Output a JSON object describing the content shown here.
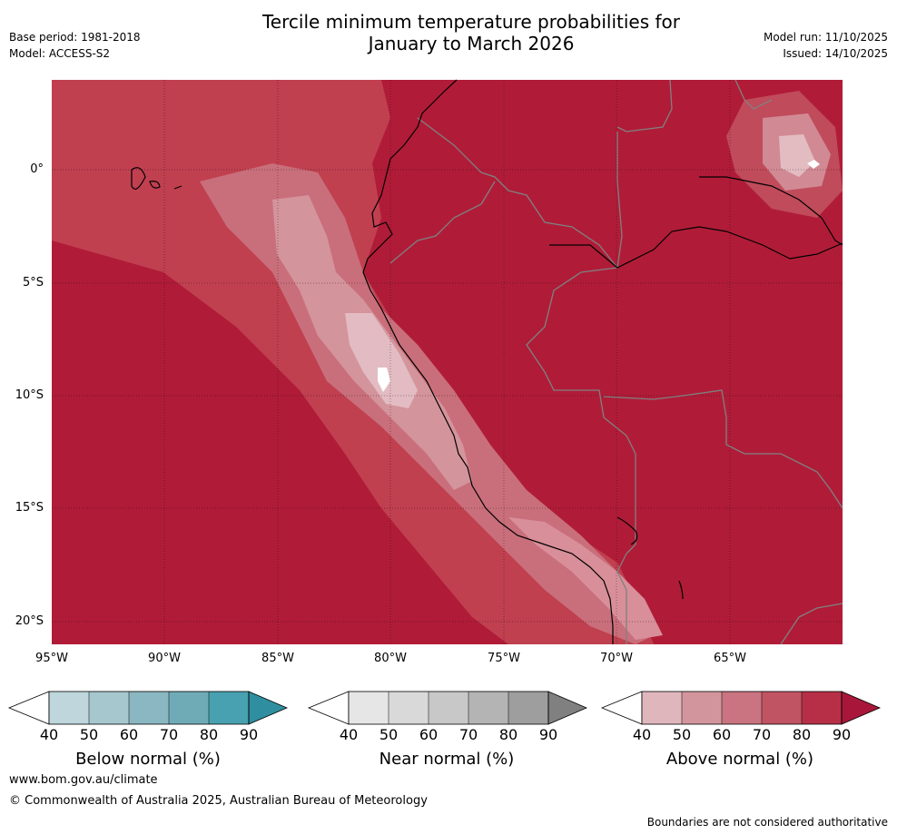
{
  "header": {
    "base_period": "Base period: 1981-2018",
    "model": "Model: ACCESS-S2",
    "title_line1": "Tercile minimum temperature probabilities for",
    "title_line2": "January to March 2026",
    "model_run": "Model run: 11/10/2025",
    "issued": "Issued: 14/10/2025"
  },
  "map": {
    "lat_labels": [
      "0°",
      "5°S",
      "10°S",
      "15°S",
      "20°S"
    ],
    "lon_labels": [
      "95°W",
      "90°W",
      "85°W",
      "80°W",
      "75°W",
      "70°W",
      "65°W"
    ],
    "dominant_category": "Above normal",
    "dominant_probability_range": "80-90 %"
  },
  "colorbars": [
    {
      "title": "Below normal (%)",
      "ticks": [
        "40",
        "50",
        "60",
        "70",
        "80",
        "90"
      ],
      "colors": [
        "#ffffff",
        "#bed6dc",
        "#a6c7ce",
        "#8ab7c1",
        "#6fabb7",
        "#48a1b0",
        "#2f8fa0"
      ]
    },
    {
      "title": "Near normal (%)",
      "ticks": [
        "40",
        "50",
        "60",
        "70",
        "80",
        "90"
      ],
      "colors": [
        "#ffffff",
        "#e6e6e6",
        "#d9d9d9",
        "#c8c8c8",
        "#b4b4b4",
        "#9e9e9e",
        "#808080"
      ]
    },
    {
      "title": "Above normal (%)",
      "ticks": [
        "40",
        "50",
        "60",
        "70",
        "80",
        "90"
      ],
      "colors": [
        "#ffffff",
        "#e0b6bd",
        "#d3959d",
        "#c97480",
        "#c15463",
        "#b72f46",
        "#a8173a"
      ]
    }
  ],
  "footer": {
    "url": "www.bom.gov.au/climate",
    "copyright": "© Commonwealth of Australia 2025, Australian Bureau of Meteorology",
    "disclaimer": "Boundaries are not considered authoritative"
  }
}
